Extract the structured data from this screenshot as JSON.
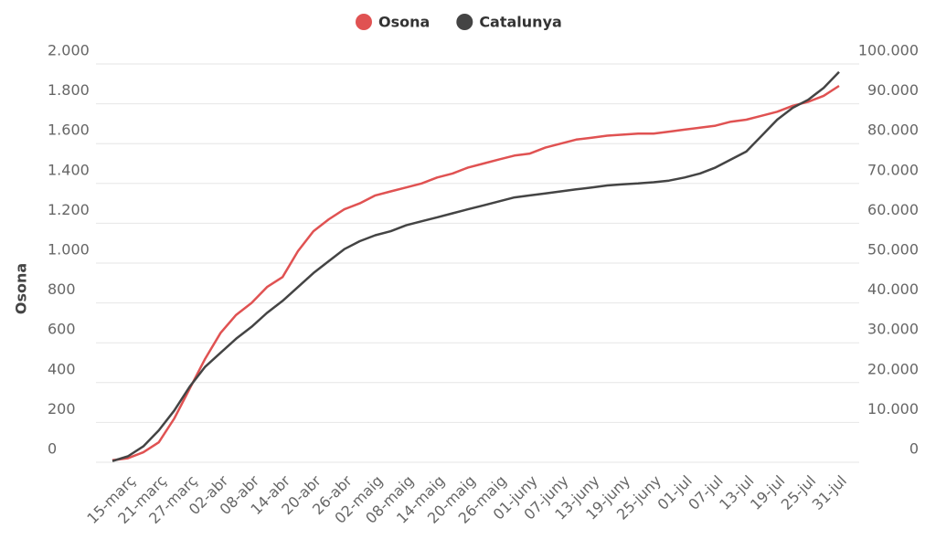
{
  "chart_data": {
    "type": "line",
    "y_label": "Osona",
    "categories": [
      null,
      "15-març",
      null,
      "21-març",
      null,
      "27-març",
      null,
      "02-abr",
      null,
      "08-abr",
      null,
      "14-abr",
      null,
      "20-abr",
      null,
      "26-abr",
      null,
      "02-maig",
      null,
      "08-maig",
      null,
      "14-maig",
      null,
      "20-maig",
      null,
      "26-maig",
      null,
      "01-juny",
      null,
      "07-juny",
      null,
      "13-juny",
      null,
      "19-juny",
      null,
      "25-juny",
      null,
      "01-jul",
      null,
      "07-jul",
      null,
      "13-jul",
      null,
      "19-jul",
      null,
      "25-jul",
      null,
      "31-jul"
    ],
    "series": [
      {
        "name": "Osona",
        "color": "#e05252",
        "axis": "y",
        "values": [
          10,
          20,
          50,
          100,
          220,
          370,
          520,
          650,
          740,
          800,
          880,
          930,
          1060,
          1160,
          1220,
          1270,
          1300,
          1340,
          1360,
          1380,
          1400,
          1430,
          1450,
          1480,
          1500,
          1520,
          1540,
          1550,
          1580,
          1600,
          1620,
          1630,
          1640,
          1645,
          1650,
          1650,
          1660,
          1670,
          1680,
          1690,
          1710,
          1720,
          1740,
          1760,
          1790,
          1810,
          1840,
          1890
        ]
      },
      {
        "name": "Catalunya",
        "color": "#444444",
        "axis": "y2",
        "values": [
          300,
          1500,
          4000,
          8000,
          13000,
          19000,
          24000,
          27500,
          31000,
          34000,
          37500,
          40500,
          44000,
          47500,
          50500,
          53500,
          55500,
          57000,
          58000,
          59500,
          60500,
          61500,
          62500,
          63500,
          64500,
          65500,
          66500,
          67000,
          67500,
          68000,
          68500,
          69000,
          69500,
          69800,
          70000,
          70300,
          70700,
          71500,
          72500,
          74000,
          76000,
          78000,
          82000,
          86000,
          89000,
          91000,
          94000,
          98000
        ]
      }
    ],
    "ylim": [
      0,
      2000
    ],
    "yticks": [
      0,
      {
        "value": 200,
        "label": "200"
      },
      {
        "value": 400,
        "label": "400"
      },
      {
        "value": 600,
        "label": "600"
      },
      {
        "value": 800,
        "label": "800"
      },
      {
        "value": 1000,
        "label": "1.000"
      },
      {
        "value": 1200,
        "label": "1.200"
      },
      {
        "value": 1400,
        "label": "1.400"
      },
      {
        "value": 1600,
        "label": "1.600"
      },
      {
        "value": 1800,
        "label": "1.800"
      },
      {
        "value": 2000,
        "label": "2.000"
      }
    ],
    "y2lim": [
      0,
      100000
    ],
    "y2ticks": [
      0,
      {
        "value": 10000,
        "label": "10.000"
      },
      {
        "value": 20000,
        "label": "20.000"
      },
      {
        "value": 30000,
        "label": "30.000"
      },
      {
        "value": 40000,
        "label": "40.000"
      },
      {
        "value": 50000,
        "label": "50.000"
      },
      {
        "value": 60000,
        "label": "60.000"
      },
      {
        "value": 70000,
        "label": "70.000"
      },
      {
        "value": 80000,
        "label": "80.000"
      },
      {
        "value": 90000,
        "label": "90.000"
      },
      {
        "value": 100000,
        "label": "100.000"
      }
    ],
    "grid": true,
    "legend": "top"
  }
}
